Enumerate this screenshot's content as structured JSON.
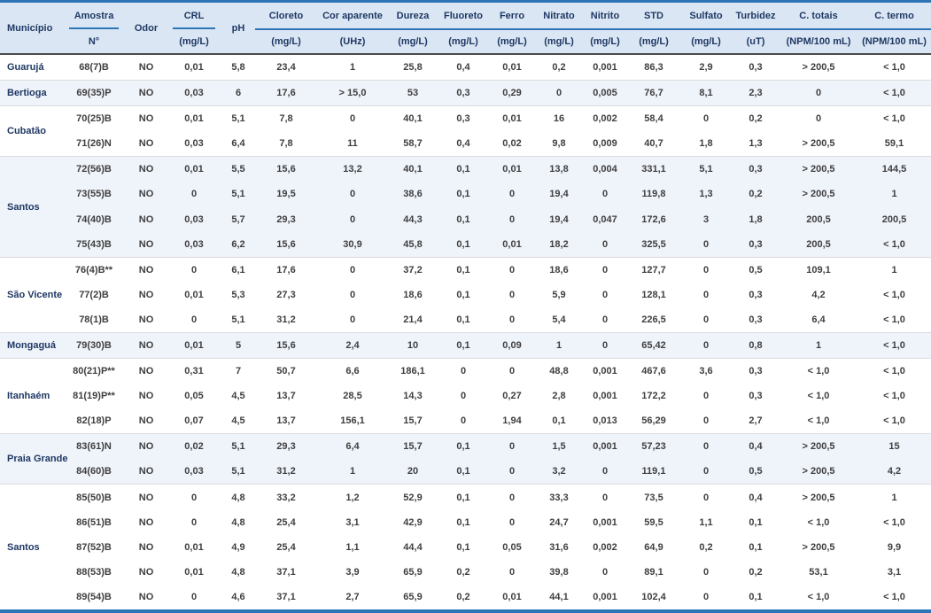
{
  "table": {
    "columns": [
      {
        "key": "municipio",
        "label": "Município",
        "unit": "",
        "line": "none"
      },
      {
        "key": "amostra",
        "label": "Amostra",
        "unit": "N°",
        "line": "partial"
      },
      {
        "key": "odor",
        "label": "Odor",
        "unit": "",
        "line": "none"
      },
      {
        "key": "crl",
        "label": "CRL",
        "unit": "(mg/L)",
        "line": "partial"
      },
      {
        "key": "ph",
        "label": "pH",
        "unit": "",
        "line": "none"
      },
      {
        "key": "cloreto",
        "label": "Cloreto",
        "unit": "(mg/L)",
        "line": "full"
      },
      {
        "key": "cor_aparente",
        "label": "Cor aparente",
        "unit": "(UHz)",
        "line": "full"
      },
      {
        "key": "dureza",
        "label": "Dureza",
        "unit": "(mg/L)",
        "line": "full"
      },
      {
        "key": "fluoreto",
        "label": "Fluoreto",
        "unit": "(mg/L)",
        "line": "full"
      },
      {
        "key": "ferro",
        "label": "Ferro",
        "unit": "(mg/L)",
        "line": "full"
      },
      {
        "key": "nitrato",
        "label": "Nitrato",
        "unit": "(mg/L)",
        "line": "full"
      },
      {
        "key": "nitrito",
        "label": "Nitrito",
        "unit": "(mg/L)",
        "line": "full"
      },
      {
        "key": "std",
        "label": "STD",
        "unit": "(mg/L)",
        "line": "full"
      },
      {
        "key": "sulfato",
        "label": "Sulfato",
        "unit": "(mg/L)",
        "line": "full"
      },
      {
        "key": "turbidez",
        "label": "Turbidez",
        "unit": "(uT)",
        "line": "full"
      },
      {
        "key": "c_totais",
        "label": "C. totais",
        "unit": "(NPM/100 mL)",
        "line": "full"
      },
      {
        "key": "c_termo",
        "label": "C. termo",
        "unit": "(NPM/100 mL)",
        "line": "full"
      }
    ],
    "groups": [
      {
        "municipio": "Guarujá",
        "shaded": false,
        "rows": [
          [
            "68(7)B",
            "NO",
            "0,01",
            "5,8",
            "23,4",
            "1",
            "25,8",
            "0,4",
            "0,01",
            "0,2",
            "0,001",
            "86,3",
            "2,9",
            "0,3",
            "> 200,5",
            "< 1,0"
          ]
        ]
      },
      {
        "municipio": "Bertioga",
        "shaded": true,
        "rows": [
          [
            "69(35)P",
            "NO",
            "0,03",
            "6",
            "17,6",
            "> 15,0",
            "53",
            "0,3",
            "0,29",
            "0",
            "0,005",
            "76,7",
            "8,1",
            "2,3",
            "0",
            "< 1,0"
          ]
        ]
      },
      {
        "municipio": "Cubatão",
        "shaded": false,
        "rows": [
          [
            "70(25)B",
            "NO",
            "0,01",
            "5,1",
            "7,8",
            "0",
            "40,1",
            "0,3",
            "0,01",
            "16",
            "0,002",
            "58,4",
            "0",
            "0,2",
            "0",
            "< 1,0"
          ],
          [
            "71(26)N",
            "NO",
            "0,03",
            "6,4",
            "7,8",
            "11",
            "58,7",
            "0,4",
            "0,02",
            "9,8",
            "0,009",
            "40,7",
            "1,8",
            "1,3",
            "> 200,5",
            "59,1"
          ]
        ]
      },
      {
        "municipio": "Santos",
        "shaded": true,
        "rows": [
          [
            "72(56)B",
            "NO",
            "0,01",
            "5,5",
            "15,6",
            "13,2",
            "40,1",
            "0,1",
            "0,01",
            "13,8",
            "0,004",
            "331,1",
            "5,1",
            "0,3",
            "> 200,5",
            "144,5"
          ],
          [
            "73(55)B",
            "NO",
            "0",
            "5,1",
            "19,5",
            "0",
            "38,6",
            "0,1",
            "0",
            "19,4",
            "0",
            "119,8",
            "1,3",
            "0,2",
            "> 200,5",
            "1"
          ],
          [
            "74(40)B",
            "NO",
            "0,03",
            "5,7",
            "29,3",
            "0",
            "44,3",
            "0,1",
            "0",
            "19,4",
            "0,047",
            "172,6",
            "3",
            "1,8",
            "200,5",
            "200,5"
          ],
          [
            "75(43)B",
            "NO",
            "0,03",
            "6,2",
            "15,6",
            "30,9",
            "45,8",
            "0,1",
            "0,01",
            "18,2",
            "0",
            "325,5",
            "0",
            "0,3",
            "200,5",
            "< 1,0"
          ]
        ]
      },
      {
        "municipio": "São Vicente",
        "shaded": false,
        "rows": [
          [
            "76(4)B**",
            "NO",
            "0",
            "6,1",
            "17,6",
            "0",
            "37,2",
            "0,1",
            "0",
            "18,6",
            "0",
            "127,7",
            "0",
            "0,5",
            "109,1",
            "1"
          ],
          [
            "77(2)B",
            "NO",
            "0,01",
            "5,3",
            "27,3",
            "0",
            "18,6",
            "0,1",
            "0",
            "5,9",
            "0",
            "128,1",
            "0",
            "0,3",
            "4,2",
            "< 1,0"
          ],
          [
            "78(1)B",
            "NO",
            "0",
            "5,1",
            "31,2",
            "0",
            "21,4",
            "0,1",
            "0",
            "5,4",
            "0",
            "226,5",
            "0",
            "0,3",
            "6,4",
            "< 1,0"
          ]
        ]
      },
      {
        "municipio": "Mongaguá",
        "shaded": true,
        "rows": [
          [
            "79(30)B",
            "NO",
            "0,01",
            "5",
            "15,6",
            "2,4",
            "10",
            "0,1",
            "0,09",
            "1",
            "0",
            "65,42",
            "0",
            "0,8",
            "1",
            "< 1,0"
          ]
        ]
      },
      {
        "municipio": "Itanhaém",
        "shaded": false,
        "rows": [
          [
            "80(21)P**",
            "NO",
            "0,31",
            "7",
            "50,7",
            "6,6",
            "186,1",
            "0",
            "0",
            "48,8",
            "0,001",
            "467,6",
            "3,6",
            "0,3",
            "< 1,0",
            "< 1,0"
          ],
          [
            "81(19)P**",
            "NO",
            "0,05",
            "4,5",
            "13,7",
            "28,5",
            "14,3",
            "0",
            "0,27",
            "2,8",
            "0,001",
            "172,2",
            "0",
            "0,3",
            "< 1,0",
            "< 1,0"
          ],
          [
            "82(18)P",
            "NO",
            "0,07",
            "4,5",
            "13,7",
            "156,1",
            "15,7",
            "0",
            "1,94",
            "0,1",
            "0,013",
            "56,29",
            "0",
            "2,7",
            "< 1,0",
            "< 1,0"
          ]
        ]
      },
      {
        "municipio": "Praia Grande",
        "shaded": true,
        "rows": [
          [
            "83(61)N",
            "NO",
            "0,02",
            "5,1",
            "29,3",
            "6,4",
            "15,7",
            "0,1",
            "0",
            "1,5",
            "0,001",
            "57,23",
            "0",
            "0,4",
            "> 200,5",
            "15"
          ],
          [
            "84(60)B",
            "NO",
            "0,03",
            "5,1",
            "31,2",
            "1",
            "20",
            "0,1",
            "0",
            "3,2",
            "0",
            "119,1",
            "0",
            "0,5",
            "> 200,5",
            "4,2"
          ]
        ]
      },
      {
        "municipio": "Santos",
        "shaded": false,
        "rows": [
          [
            "85(50)B",
            "NO",
            "0",
            "4,8",
            "33,2",
            "1,2",
            "52,9",
            "0,1",
            "0",
            "33,3",
            "0",
            "73,5",
            "0",
            "0,4",
            "> 200,5",
            "1"
          ],
          [
            "86(51)B",
            "NO",
            "0",
            "4,8",
            "25,4",
            "3,1",
            "42,9",
            "0,1",
            "0",
            "24,7",
            "0,001",
            "59,5",
            "1,1",
            "0,1",
            "< 1,0",
            "< 1,0"
          ],
          [
            "87(52)B",
            "NO",
            "0,01",
            "4,9",
            "25,4",
            "1,1",
            "44,4",
            "0,1",
            "0,05",
            "31,6",
            "0,002",
            "64,9",
            "0,2",
            "0,1",
            "> 200,5",
            "9,9"
          ],
          [
            "88(53)B",
            "NO",
            "0,01",
            "4,8",
            "37,1",
            "3,9",
            "65,9",
            "0,2",
            "0",
            "39,8",
            "0",
            "89,1",
            "0",
            "0,2",
            "53,1",
            "3,1"
          ],
          [
            "89(54)B",
            "NO",
            "0",
            "4,6",
            "37,1",
            "2,7",
            "65,9",
            "0,2",
            "0,01",
            "44,1",
            "0,001",
            "102,4",
            "0",
            "0,1",
            "< 1,0",
            "< 1,0"
          ]
        ]
      }
    ],
    "colors": {
      "accent_blue": "#2E75B6",
      "header_bg": "#DAE6F3",
      "stripe_bg": "#EFF3FA",
      "header_text": "#1F3864",
      "body_text": "#3F3F3F"
    }
  }
}
